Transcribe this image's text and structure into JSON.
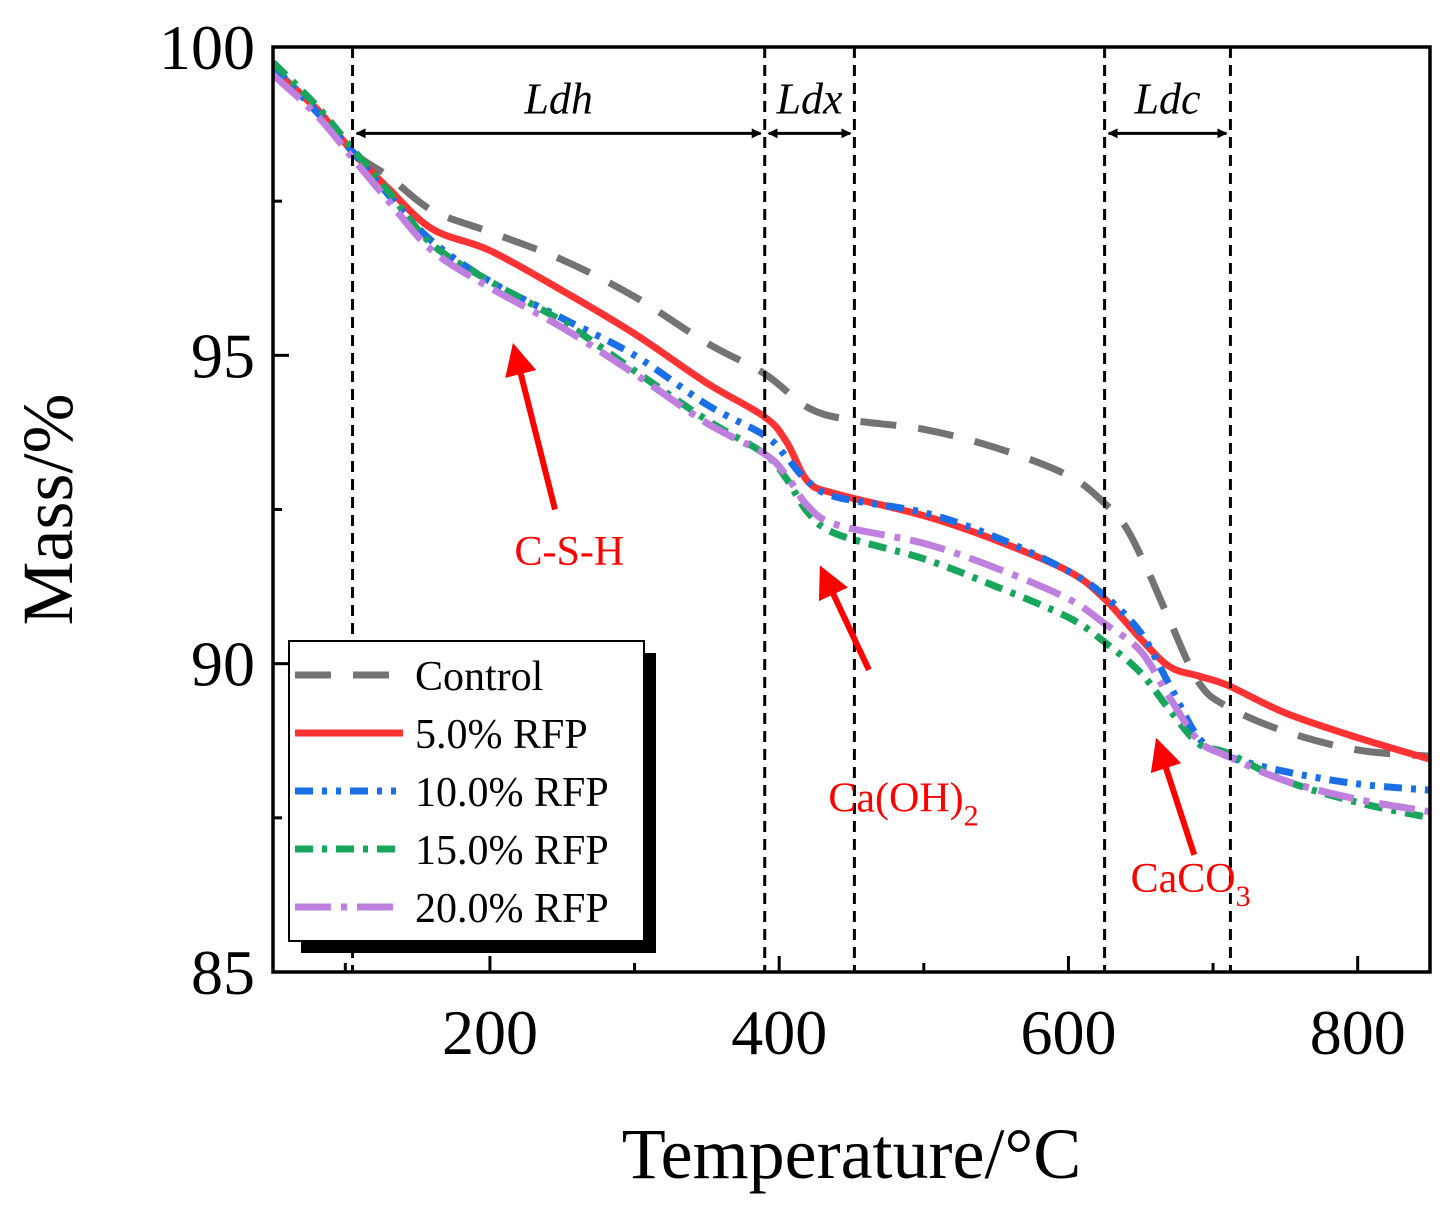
{
  "chart_data": {
    "type": "line",
    "xlabel": "Temperature/°C",
    "ylabel": "Mass/%",
    "xlim": [
      50,
      850
    ],
    "ylim": [
      85,
      100
    ],
    "xticks": [
      200,
      400,
      600,
      800
    ],
    "xticks_minor": [
      100,
      300,
      500,
      700
    ],
    "yticks": [
      85,
      90,
      95,
      100
    ],
    "yticks_minor": [
      87.5,
      92.5,
      97.5
    ],
    "grid": false,
    "legend": {
      "position": "bottom-left",
      "entries": [
        "Control",
        "5.0% RFP",
        "10.0% RFP",
        "15.0% RFP",
        "20.0% RFP"
      ]
    },
    "vlines": [
      105,
      390,
      452,
      625,
      712
    ],
    "regions": [
      {
        "label": "Ldh",
        "from": 105,
        "to": 390,
        "y": 98.6
      },
      {
        "label": "Ldx",
        "from": 390,
        "to": 452,
        "y": 98.6
      },
      {
        "label": "Ldc",
        "from": 625,
        "to": 712,
        "y": 98.6
      }
    ],
    "annotations": [
      {
        "text": "C-S-H",
        "sub": "",
        "label_x": 217,
        "label_y": 91.6,
        "arrow_from": [
          245,
          92.5
        ],
        "arrow_to": [
          217,
          95.1
        ]
      },
      {
        "text": "Ca(OH)",
        "sub": "2",
        "label_x": 434,
        "label_y": 87.6,
        "arrow_from": [
          462,
          89.9
        ],
        "arrow_to": [
          430,
          91.5
        ]
      },
      {
        "text": "CaCO",
        "sub": "3",
        "label_x": 643,
        "label_y": 86.3,
        "arrow_from": [
          687,
          86.9
        ],
        "arrow_to": [
          662,
          88.7
        ]
      }
    ],
    "series": [
      {
        "name": "Control",
        "color": "#737373",
        "dash": "36,22",
        "x": [
          50,
          80,
          105,
          130,
          160,
          200,
          250,
          300,
          350,
          390,
          420,
          450,
          500,
          550,
          600,
          625,
          640,
          655,
          670,
          690,
          710,
          750,
          800,
          850
        ],
        "y": [
          99.65,
          99.0,
          98.3,
          97.9,
          97.35,
          97.0,
          96.55,
          95.95,
          95.2,
          94.7,
          94.15,
          93.95,
          93.8,
          93.5,
          93.05,
          92.6,
          92.2,
          91.5,
          90.7,
          89.7,
          89.3,
          88.9,
          88.6,
          88.5
        ]
      },
      {
        "name": "5.0% RFP",
        "color": "#ff3333",
        "dash": "",
        "x": [
          50,
          80,
          105,
          130,
          160,
          200,
          250,
          300,
          350,
          390,
          405,
          420,
          440,
          500,
          550,
          600,
          625,
          650,
          670,
          690,
          710,
          750,
          800,
          850
        ],
        "y": [
          99.6,
          99.0,
          98.3,
          97.7,
          97.05,
          96.7,
          96.05,
          95.35,
          94.55,
          94.0,
          93.6,
          92.95,
          92.75,
          92.4,
          92.0,
          91.5,
          91.05,
          90.4,
          89.95,
          89.8,
          89.65,
          89.2,
          88.8,
          88.45
        ]
      },
      {
        "name": "10.0% RFP",
        "color": "#1a6fe8",
        "dash": "18,9,5,9,5,9",
        "x": [
          50,
          80,
          105,
          130,
          160,
          200,
          250,
          300,
          350,
          390,
          405,
          420,
          440,
          500,
          550,
          600,
          625,
          650,
          670,
          690,
          710,
          750,
          800,
          850
        ],
        "y": [
          99.7,
          98.95,
          98.3,
          97.6,
          96.85,
          96.2,
          95.6,
          95.0,
          94.2,
          93.7,
          93.35,
          92.95,
          92.7,
          92.45,
          92.05,
          91.5,
          91.1,
          90.5,
          89.65,
          88.8,
          88.5,
          88.25,
          88.05,
          87.95
        ]
      },
      {
        "name": "15.0% RFP",
        "color": "#17a65c",
        "dash": "18,9,5,9",
        "x": [
          50,
          80,
          105,
          130,
          160,
          200,
          250,
          300,
          350,
          390,
          405,
          420,
          440,
          500,
          550,
          600,
          625,
          650,
          670,
          690,
          710,
          750,
          800,
          850
        ],
        "y": [
          99.75,
          99.05,
          98.35,
          97.65,
          96.8,
          96.2,
          95.55,
          94.75,
          93.95,
          93.4,
          93.0,
          92.45,
          92.1,
          91.7,
          91.25,
          90.75,
          90.35,
          89.85,
          89.25,
          88.7,
          88.55,
          88.1,
          87.75,
          87.5
        ]
      },
      {
        "name": "20.0% RFP",
        "color": "#bf7fdf",
        "dash": "36,10,6,10",
        "x": [
          50,
          80,
          105,
          130,
          160,
          200,
          250,
          300,
          350,
          390,
          405,
          420,
          440,
          500,
          550,
          600,
          625,
          650,
          670,
          690,
          710,
          750,
          800,
          850
        ],
        "y": [
          99.55,
          98.9,
          98.2,
          97.5,
          96.7,
          96.1,
          95.45,
          94.7,
          93.9,
          93.4,
          93.05,
          92.55,
          92.25,
          91.95,
          91.55,
          91.05,
          90.65,
          90.2,
          89.45,
          88.75,
          88.5,
          88.1,
          87.8,
          87.6
        ]
      }
    ]
  }
}
